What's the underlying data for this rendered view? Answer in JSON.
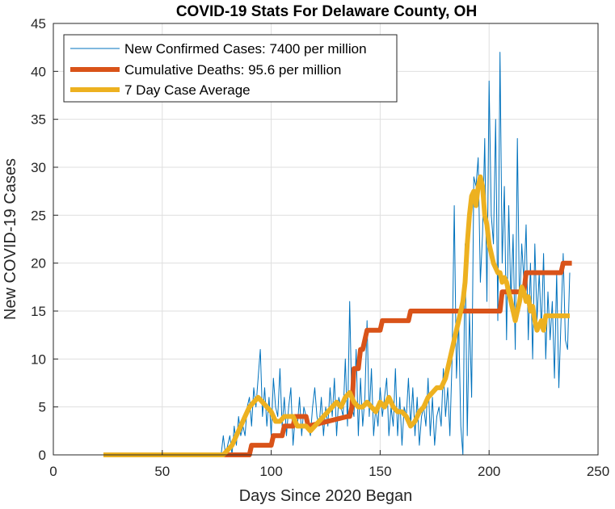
{
  "chart_data": {
    "type": "line",
    "title": "COVID-19 Stats For Delaware County, OH",
    "xlabel": "Days Since 2020 Began",
    "ylabel": "New COVID-19 Cases",
    "xlim": [
      0,
      250
    ],
    "ylim": [
      0,
      45
    ],
    "xticks": [
      "0",
      "50",
      "100",
      "150",
      "200",
      "250"
    ],
    "yticks": [
      "0",
      "5",
      "10",
      "15",
      "20",
      "25",
      "30",
      "35",
      "40",
      "45"
    ],
    "grid": true,
    "legend_position": "top-left",
    "series": [
      {
        "name": "New Confirmed Cases: 7400 per million",
        "color": "#0072BD",
        "x": [
          77,
          78,
          79,
          80,
          81,
          82,
          83,
          84,
          85,
          86,
          87,
          88,
          89,
          90,
          91,
          92,
          93,
          94,
          95,
          96,
          97,
          98,
          99,
          100,
          101,
          102,
          103,
          104,
          105,
          106,
          107,
          108,
          109,
          110,
          111,
          112,
          113,
          114,
          115,
          116,
          117,
          118,
          119,
          120,
          121,
          122,
          123,
          124,
          125,
          126,
          127,
          128,
          129,
          130,
          131,
          132,
          133,
          134,
          135,
          136,
          137,
          138,
          139,
          140,
          141,
          142,
          143,
          144,
          145,
          146,
          147,
          148,
          149,
          150,
          151,
          152,
          153,
          154,
          155,
          156,
          157,
          158,
          159,
          160,
          161,
          162,
          163,
          164,
          165,
          166,
          167,
          168,
          169,
          170,
          171,
          172,
          173,
          174,
          175,
          176,
          177,
          178,
          179,
          180,
          181,
          182,
          183,
          184,
          185,
          186,
          187,
          188,
          189,
          190,
          191,
          192,
          193,
          194,
          195,
          196,
          197,
          198,
          199,
          200,
          201,
          202,
          203,
          204,
          205,
          206,
          207,
          208,
          209,
          210,
          211,
          212,
          213,
          214,
          215,
          216,
          217,
          218,
          219,
          220,
          221,
          222,
          223,
          224,
          225,
          226,
          227,
          228,
          229,
          230,
          231,
          232,
          233,
          234,
          235,
          236,
          237
        ],
        "values": [
          0,
          2,
          0,
          1,
          2,
          0,
          3,
          1,
          4,
          2,
          3,
          2,
          5,
          6,
          3,
          7,
          5,
          8,
          11,
          4,
          7,
          3,
          6,
          2,
          8,
          5,
          4,
          9,
          3,
          6,
          2,
          5,
          7,
          1,
          4,
          3,
          6,
          2,
          5,
          4,
          3,
          2,
          5,
          7,
          4,
          3,
          6,
          2,
          5,
          3,
          7,
          4,
          8,
          2,
          6,
          5,
          4,
          10,
          3,
          16,
          5,
          4,
          11,
          2,
          8,
          3,
          6,
          14,
          4,
          9,
          2,
          5,
          3,
          7,
          4,
          6,
          8,
          2,
          5,
          3,
          9,
          2,
          6,
          1,
          5,
          4,
          8,
          3,
          7,
          2,
          6,
          1,
          4,
          5,
          3,
          8,
          2,
          6,
          1,
          4,
          5,
          3,
          9,
          4,
          7,
          2,
          10,
          26,
          8,
          14,
          3,
          0,
          22,
          2,
          15,
          6,
          29,
          28,
          31,
          18,
          23,
          33,
          16,
          39,
          25,
          22,
          35,
          14,
          42,
          20,
          28,
          12,
          26,
          16,
          23,
          11,
          33,
          15,
          22,
          18,
          24,
          12,
          20,
          10,
          22,
          14,
          19,
          13,
          21,
          10,
          17,
          12,
          16,
          8,
          19,
          7,
          14,
          21,
          12,
          11,
          19
        ]
      },
      {
        "name": "Cumulative Deaths: 95.6 per million",
        "color": "#D95319",
        "x": [
          23,
          80,
          90,
          91,
          100,
          101,
          105,
          106,
          110,
          111,
          116,
          117,
          135,
          136,
          137,
          138,
          140,
          141,
          142,
          143,
          144,
          145,
          150,
          151,
          155,
          156,
          163,
          164,
          180,
          200,
          205,
          206,
          212,
          213,
          216,
          217,
          233,
          234,
          238
        ],
        "values": [
          0,
          0,
          0,
          1,
          1,
          2,
          2,
          3,
          3,
          4,
          4,
          3,
          4,
          4,
          5,
          9,
          9,
          11,
          11,
          12,
          13,
          13,
          13,
          14,
          14,
          14,
          14,
          15,
          15,
          15,
          15,
          17,
          17,
          17,
          17,
          19,
          19,
          20,
          20
        ]
      },
      {
        "name": "7 Day Case Average",
        "color": "#EDB120",
        "x": [
          23,
          78,
          80,
          82,
          84,
          86,
          88,
          90,
          92,
          94,
          96,
          98,
          100,
          102,
          104,
          106,
          108,
          110,
          112,
          114,
          116,
          118,
          120,
          122,
          124,
          126,
          128,
          130,
          132,
          134,
          136,
          138,
          140,
          142,
          144,
          146,
          148,
          150,
          152,
          154,
          156,
          158,
          160,
          162,
          164,
          166,
          168,
          170,
          172,
          174,
          176,
          178,
          180,
          182,
          184,
          186,
          188,
          189,
          190,
          191,
          192,
          193,
          194,
          195,
          196,
          197,
          198,
          199,
          200,
          201,
          202,
          203,
          204,
          205,
          206,
          207,
          208,
          209,
          210,
          211,
          212,
          213,
          214,
          215,
          216,
          217,
          218,
          219,
          220,
          221,
          222,
          223,
          224,
          225,
          226,
          227,
          228,
          229,
          230,
          231,
          232,
          233,
          234,
          235,
          236,
          237
        ],
        "values": [
          0,
          0,
          0.5,
          1,
          2,
          3,
          4,
          5,
          5.5,
          6,
          5.5,
          5,
          4.5,
          3.5,
          3.5,
          4,
          4,
          4,
          3,
          3,
          3,
          2.5,
          3,
          3.5,
          4,
          4.5,
          5,
          5.5,
          5,
          6,
          6.5,
          5.5,
          5,
          5,
          5.5,
          5,
          4.5,
          5.5,
          5,
          6,
          5,
          4.5,
          4.5,
          4,
          3,
          3.5,
          4.5,
          5,
          6,
          6.5,
          7,
          7,
          8,
          10,
          12,
          14,
          16,
          18,
          22,
          25,
          27,
          27.5,
          26,
          28,
          29,
          28,
          25,
          24,
          22,
          21,
          20,
          19.5,
          19,
          19,
          18,
          18.5,
          18,
          17,
          16,
          15,
          14,
          15,
          16,
          17.5,
          17,
          16,
          16.5,
          15,
          15.5,
          14,
          13,
          13.5,
          14,
          13,
          14.5,
          14.5,
          14.5,
          14.5,
          14.5,
          14.5,
          14.5,
          14.5,
          14.5,
          14.5,
          14.5,
          14.5
        ]
      }
    ]
  }
}
